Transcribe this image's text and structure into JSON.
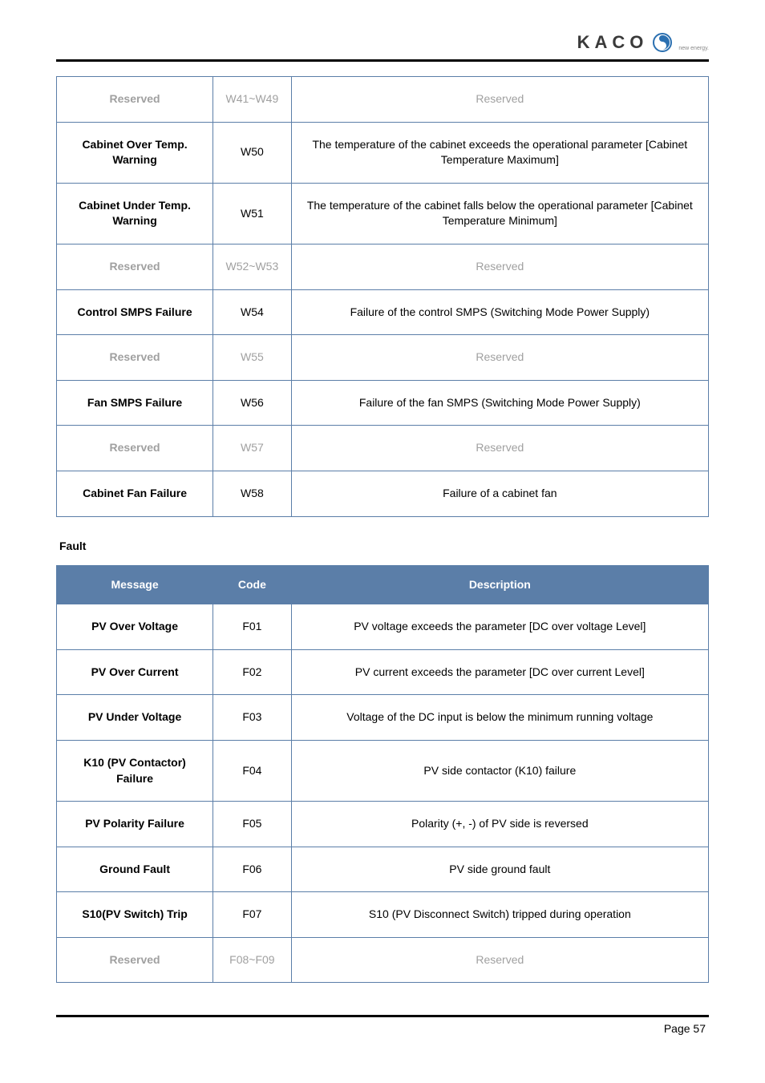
{
  "logo": {
    "text": "KACO",
    "tagline": "new energy."
  },
  "warningTable": {
    "rows": [
      {
        "msg": "Reserved",
        "code": "W41~W49",
        "desc": "Reserved",
        "reserved": true
      },
      {
        "msg": "Cabinet Over Temp. Warning",
        "code": "W50",
        "desc": "The temperature of the cabinet exceeds the operational parameter [Cabinet Temperature Maximum]",
        "reserved": false
      },
      {
        "msg": "Cabinet Under Temp. Warning",
        "code": "W51",
        "desc": "The temperature of the cabinet falls below the operational parameter [Cabinet Temperature Minimum]",
        "reserved": false
      },
      {
        "msg": "Reserved",
        "code": "W52~W53",
        "desc": "Reserved",
        "reserved": true
      },
      {
        "msg": "Control SMPS Failure",
        "code": "W54",
        "desc": "Failure of the control SMPS (Switching Mode Power Supply)",
        "reserved": false
      },
      {
        "msg": "Reserved",
        "code": "W55",
        "desc": "Reserved",
        "reserved": true
      },
      {
        "msg": "Fan SMPS Failure",
        "code": "W56",
        "desc": "Failure of the fan SMPS (Switching Mode Power Supply)",
        "reserved": false
      },
      {
        "msg": "Reserved",
        "code": "W57",
        "desc": "Reserved",
        "reserved": true
      },
      {
        "msg": "Cabinet Fan Failure",
        "code": "W58",
        "desc": "Failure of a cabinet fan",
        "reserved": false
      }
    ]
  },
  "faultSection": {
    "title": "Fault"
  },
  "faultTable": {
    "headers": {
      "msg": "Message",
      "code": "Code",
      "desc": "Description"
    },
    "rows": [
      {
        "msg": "PV Over Voltage",
        "code": "F01",
        "desc": "PV voltage exceeds the parameter [DC over voltage Level]",
        "reserved": false
      },
      {
        "msg": "PV Over Current",
        "code": "F02",
        "desc": "PV current exceeds the parameter [DC over current Level]",
        "reserved": false
      },
      {
        "msg": "PV Under Voltage",
        "code": "F03",
        "desc": "Voltage of the DC input is below the minimum running voltage",
        "reserved": false
      },
      {
        "msg": "K10 (PV Contactor) Failure",
        "code": "F04",
        "desc": "PV side contactor (K10) failure",
        "reserved": false
      },
      {
        "msg": "PV Polarity Failure",
        "code": "F05",
        "desc": "Polarity (+, -) of PV side is reversed",
        "reserved": false
      },
      {
        "msg": "Ground Fault",
        "code": "F06",
        "desc": "PV side ground fault",
        "reserved": false
      },
      {
        "msg": "S10(PV Switch) Trip",
        "code": "F07",
        "desc": "S10 (PV Disconnect Switch) tripped during operation",
        "reserved": false
      },
      {
        "msg": "Reserved",
        "code": "F08~F09",
        "desc": "Reserved",
        "reserved": true
      }
    ]
  },
  "footer": {
    "pageLabel": "Page 57"
  }
}
